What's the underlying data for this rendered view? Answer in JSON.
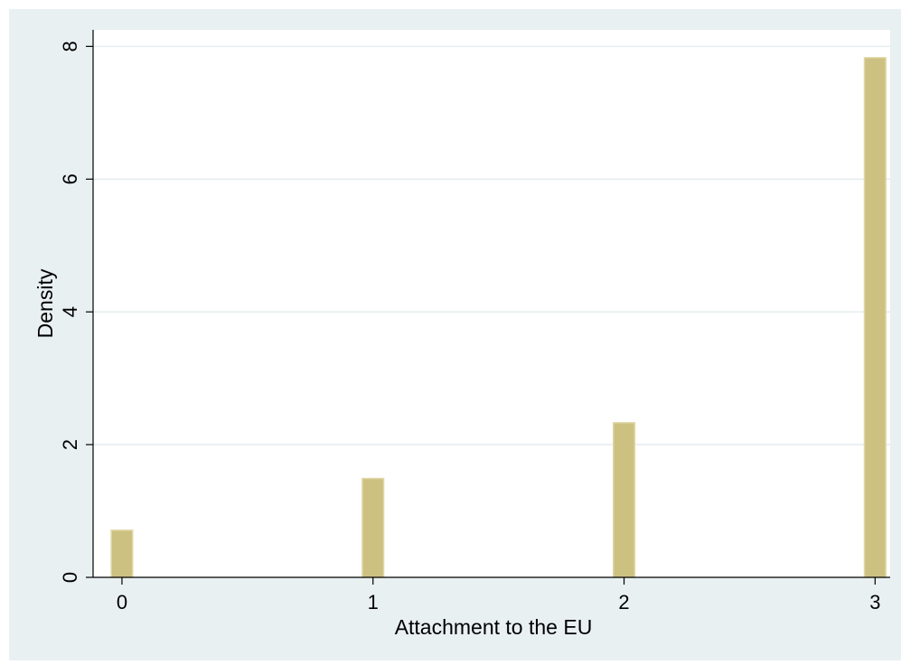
{
  "chart_data": {
    "type": "bar",
    "title": "",
    "xlabel": "Attachment to the EU",
    "ylabel": "Density",
    "x": [
      0,
      1,
      2,
      3
    ],
    "values": [
      0.71,
      1.49,
      2.33,
      7.83
    ],
    "xlim": [
      -0.115,
      3.06
    ],
    "ylim": [
      0,
      8.25
    ],
    "xticks": [
      0,
      1,
      2,
      3
    ],
    "yticks": [
      0,
      2,
      4,
      6,
      8
    ],
    "bar_width": 0.085,
    "grid": true,
    "legend": "none",
    "colors": {
      "outer_background": "#e9f0f2",
      "plot_background": "#ffffff",
      "gridline": "#e6eef0",
      "bar_fill": "#cdc181",
      "bar_stroke": "#e0d7a6",
      "axis": "#000000"
    }
  }
}
